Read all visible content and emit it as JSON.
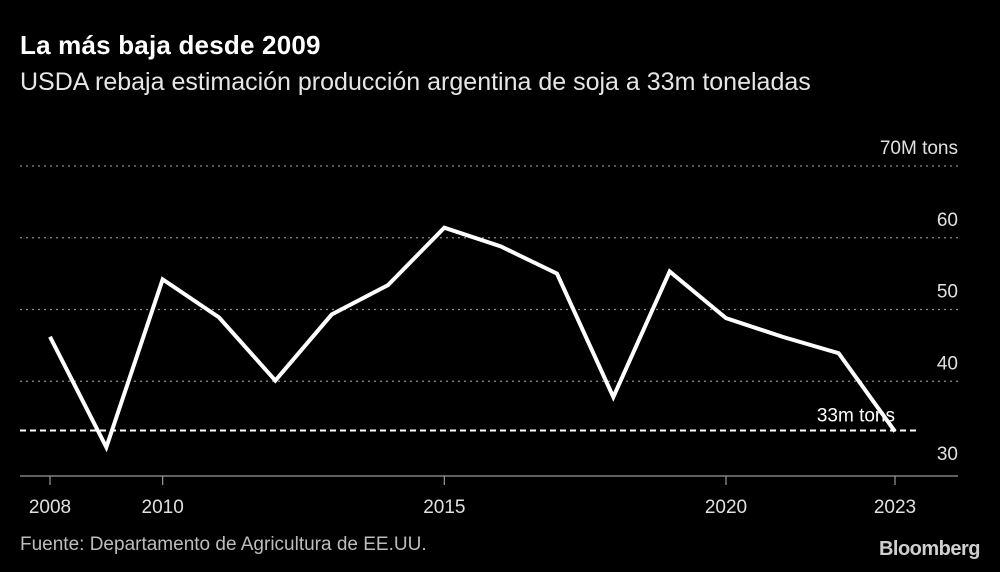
{
  "title": "La más baja desde 2009",
  "subtitle": "USDA rebaja estimación producción argentina de soja a 33m toneladas",
  "source": "Fuente: Departamento de Agricultura de EE.UU.",
  "brand": "Bloomberg",
  "colors": {
    "background": "#000000",
    "line": "#ffffff",
    "grid": "#8a8a8a",
    "reference": "#ffffff"
  },
  "chart_data": {
    "type": "line",
    "title": "La más baja desde 2009",
    "subtitle": "USDA rebaja estimación producción argentina de soja a 33m toneladas",
    "xlabel": "",
    "ylabel": "",
    "xlim": [
      2008,
      2023
    ],
    "ylim": [
      30,
      70
    ],
    "x_ticks": [
      2008,
      2010,
      2015,
      2020,
      2023
    ],
    "x_tick_labels": [
      "2008",
      "2010",
      "2015",
      "2020",
      "2023"
    ],
    "y_ticks": [
      30,
      40,
      50,
      60,
      70
    ],
    "y_tick_labels": [
      "30",
      "40",
      "50",
      "60",
      "70M tons"
    ],
    "grid": "horizontal dotted",
    "series": [
      {
        "x": [
          2008,
          2009,
          2010,
          2011,
          2012,
          2013,
          2014,
          2015,
          2016,
          2017,
          2018,
          2019,
          2020,
          2021,
          2022,
          2023
        ],
        "values": [
          46.2,
          30.8,
          54.2,
          48.9,
          40.1,
          49.3,
          53.4,
          61.4,
          58.8,
          55.0,
          37.8,
          55.3,
          48.8,
          46.2,
          43.9,
          33.0
        ]
      }
    ],
    "reference_line": {
      "value": 33,
      "label": "33m tons",
      "style": "dashed"
    }
  }
}
